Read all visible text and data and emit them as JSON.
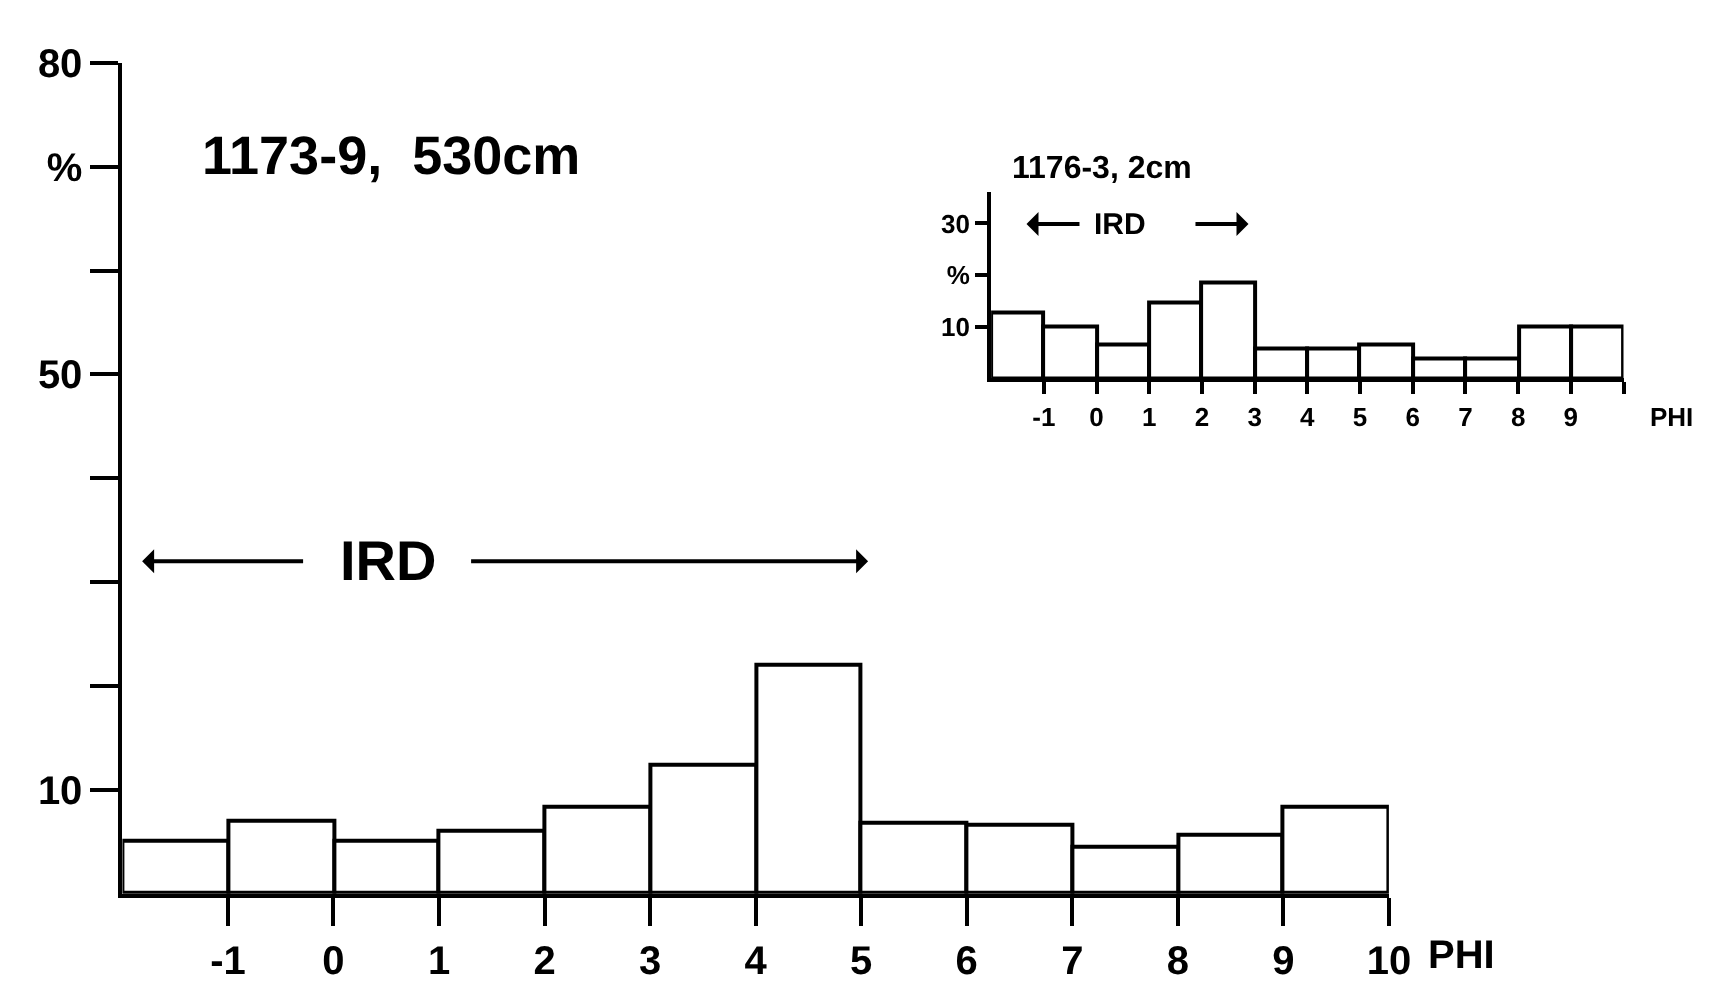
{
  "chart_data": [
    {
      "type": "histogram",
      "title": "1173-9,  530cm",
      "xlabel": "PHI",
      "color": "#ffffff",
      "bins": [
        -2,
        -1,
        0,
        1,
        2,
        3,
        4,
        5,
        6,
        7,
        8,
        9,
        10
      ],
      "values": [
        5,
        7,
        5,
        6,
        8.3,
        12.5,
        22,
        6.8,
        6.6,
        4.5,
        5.6,
        8.4
      ],
      "xlim": [
        -2,
        10
      ],
      "xticks": [
        -1,
        0,
        1,
        2,
        3,
        4,
        5,
        6,
        7,
        8,
        9,
        10
      ],
      "ylim": [
        0,
        80
      ],
      "yticks": [
        {
          "value": 10,
          "label": "10"
        },
        {
          "value": 20,
          "label": null
        },
        {
          "value": 30,
          "label": null
        },
        {
          "value": 40,
          "label": null
        },
        {
          "value": 50,
          "label": "50"
        },
        {
          "value": 60,
          "label": null
        },
        {
          "value": 70,
          "label": "%"
        },
        {
          "value": 80,
          "label": "80"
        }
      ],
      "annotations": [
        "IRD"
      ]
    },
    {
      "type": "histogram",
      "title": "1176-3, 2cm",
      "xlabel": "PHI",
      "color": "#ffffff",
      "bins": [
        -2,
        -1,
        0,
        1,
        2,
        3,
        4,
        5,
        6,
        7,
        8,
        9,
        10
      ],
      "values": [
        12.7,
        10.2,
        6.4,
        14.7,
        18.4,
        5.9,
        5.8,
        6.4,
        4,
        3.9,
        10.2,
        10.2
      ],
      "xlim": [
        -2,
        10
      ],
      "xticks": [
        -1,
        0,
        1,
        2,
        3,
        4,
        5,
        6,
        7,
        8,
        9,
        {
          "value": 10,
          "label": null
        }
      ],
      "ylim": [
        0,
        36
      ],
      "yticks": [
        {
          "value": 10,
          "label": "10"
        },
        {
          "value": 20,
          "label": "%"
        },
        {
          "value": 30,
          "label": "30"
        }
      ],
      "annotations": [
        "IRD"
      ]
    }
  ]
}
